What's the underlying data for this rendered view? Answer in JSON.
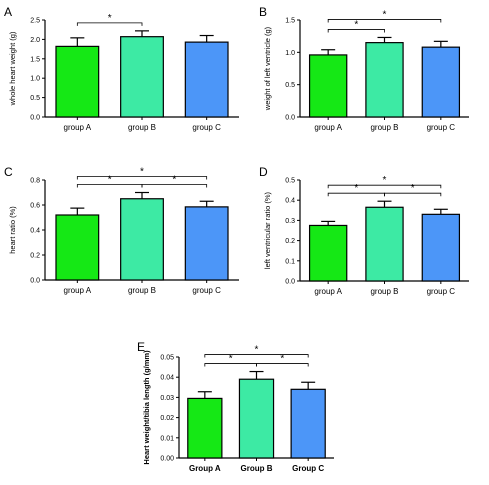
{
  "chart_data": [
    {
      "panel": "A",
      "type": "bar",
      "categories": [
        "group A",
        "group B",
        "group C"
      ],
      "series": [
        {
          "values": [
            1.82,
            2.07,
            1.93
          ],
          "errors": [
            0.22,
            0.15,
            0.17
          ]
        }
      ],
      "colors": [
        "#15e815",
        "#3deaa4",
        "#4c96f8"
      ],
      "ylabel": "whole heart weight (g)",
      "yticks": [
        "0.0",
        "0.5",
        "1.0",
        "1.5",
        "2.0",
        "2.5"
      ],
      "ylim": [
        0,
        2.5
      ],
      "significance": [
        {
          "from": 0,
          "to": 1,
          "label": "*"
        }
      ]
    },
    {
      "panel": "B",
      "type": "bar",
      "categories": [
        "group A",
        "group B",
        "group C"
      ],
      "series": [
        {
          "values": [
            0.96,
            1.15,
            1.08
          ],
          "errors": [
            0.08,
            0.08,
            0.09
          ]
        }
      ],
      "colors": [
        "#15e815",
        "#3deaa4",
        "#4c96f8"
      ],
      "ylabel": "weight of left ventricle (g)",
      "yticks": [
        "0.0",
        "0.5",
        "1.0",
        "1.5"
      ],
      "ylim": [
        0,
        1.5
      ],
      "significance": [
        {
          "from": 0,
          "to": 1,
          "label": "*"
        },
        {
          "from": 0,
          "to": 2,
          "label": "*"
        }
      ]
    },
    {
      "panel": "C",
      "type": "bar",
      "categories": [
        "group A",
        "group B",
        "group C"
      ],
      "series": [
        {
          "values": [
            0.52,
            0.65,
            0.585
          ],
          "errors": [
            0.055,
            0.05,
            0.045
          ]
        }
      ],
      "colors": [
        "#15e815",
        "#3deaa4",
        "#4c96f8"
      ],
      "ylabel": "heart ratio (%)",
      "yticks": [
        "0.0",
        "0.2",
        "0.4",
        "0.6",
        "0.8"
      ],
      "ylim": [
        0,
        0.8
      ],
      "significance": [
        {
          "from": 0,
          "to": 1,
          "label": "*"
        },
        {
          "from": 1,
          "to": 2,
          "label": "*"
        },
        {
          "from": 0,
          "to": 2,
          "label": "*"
        }
      ]
    },
    {
      "panel": "D",
      "type": "bar",
      "categories": [
        "group A",
        "group B",
        "group C"
      ],
      "series": [
        {
          "values": [
            0.275,
            0.365,
            0.33
          ],
          "errors": [
            0.02,
            0.03,
            0.025
          ]
        }
      ],
      "colors": [
        "#15e815",
        "#3deaa4",
        "#4c96f8"
      ],
      "ylabel": "left ventricular ratio (%)",
      "yticks": [
        "0.0",
        "0.1",
        "0.2",
        "0.3",
        "0.4",
        "0.5"
      ],
      "ylim": [
        0,
        0.5
      ],
      "significance": [
        {
          "from": 0,
          "to": 1,
          "label": "*"
        },
        {
          "from": 1,
          "to": 2,
          "label": "*"
        },
        {
          "from": 0,
          "to": 2,
          "label": "*"
        }
      ]
    },
    {
      "panel": "E",
      "type": "bar",
      "categories": [
        "Group A",
        "Group B",
        "Group C"
      ],
      "series": [
        {
          "values": [
            0.0295,
            0.039,
            0.034
          ],
          "errors": [
            0.0033,
            0.0038,
            0.0035
          ]
        }
      ],
      "colors": [
        "#15e815",
        "#3deaa4",
        "#4c96f8"
      ],
      "ylabel": "Heart weight/tibia length (g/mm)",
      "yticks": [
        "0.00",
        "0.01",
        "0.02",
        "0.03",
        "0.04",
        "0.05"
      ],
      "ylim": [
        0,
        0.05
      ],
      "significance": [
        {
          "from": 0,
          "to": 1,
          "label": "*"
        },
        {
          "from": 1,
          "to": 2,
          "label": "*"
        },
        {
          "from": 0,
          "to": 2,
          "label": "*"
        }
      ]
    }
  ]
}
